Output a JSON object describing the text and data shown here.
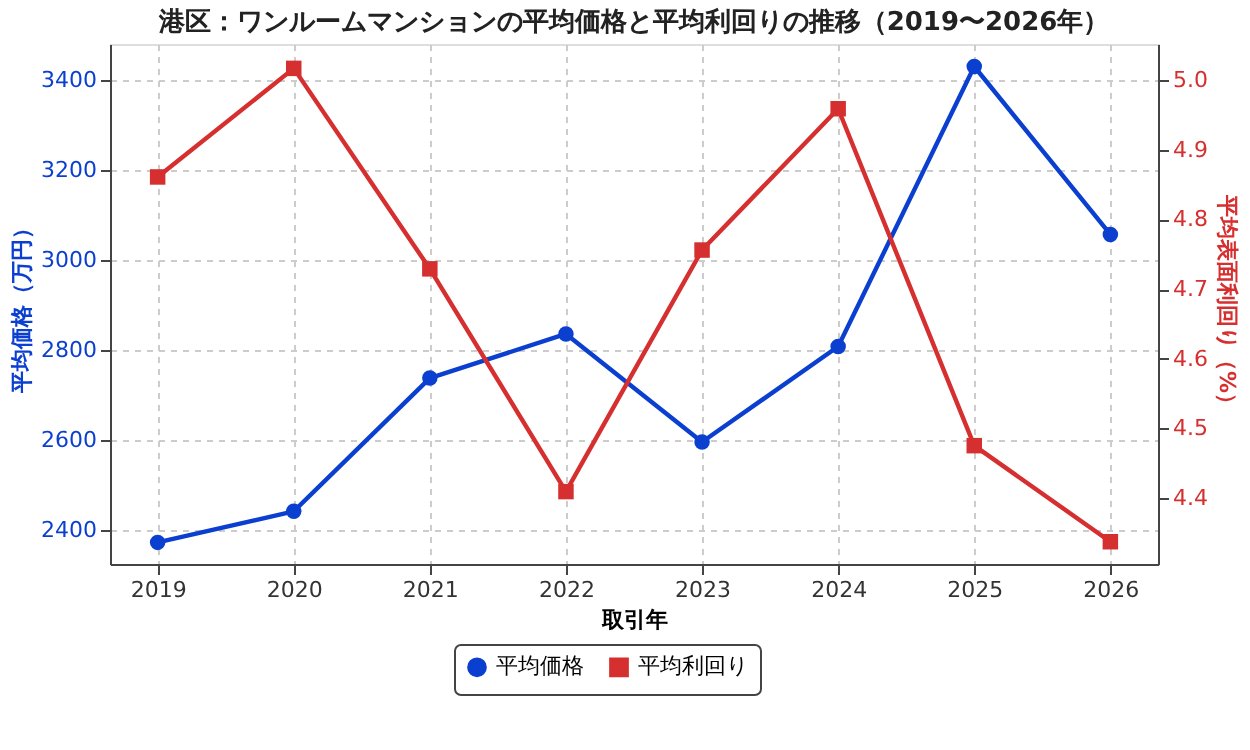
{
  "chart_data": {
    "type": "line",
    "title": "港区：ワンルームマンションの平均価格と平均利回りの推移（2019〜2026年）",
    "xlabel": "取引年",
    "ylabel": "平均価格（万円）",
    "y2label": "平均表面利回り（%）",
    "categories": [
      "2019",
      "2020",
      "2021",
      "2022",
      "2023",
      "2024",
      "2025",
      "2026"
    ],
    "series": [
      {
        "name": "平均価格",
        "color": "#0b3fd0",
        "marker": "circle",
        "values": [
          2373,
          2442,
          2738,
          2836,
          2596,
          2808,
          3430,
          3057
        ]
      },
      {
        "name": "平均利回り",
        "color": "#d62f2f",
        "marker": "square",
        "axis": "y2",
        "values": [
          4.861,
          5.017,
          4.729,
          4.409,
          4.756,
          4.959,
          4.475,
          4.337
        ]
      }
    ],
    "ylim": [
      2325,
      3480
    ],
    "yticks": [
      2400,
      2600,
      2800,
      3000,
      3200,
      3400
    ],
    "y2lim": [
      4.305,
      5.052
    ],
    "y2ticks": [
      4.4,
      4.5,
      4.6,
      4.7,
      4.8,
      4.9,
      {
        "value": 5,
        "label": "5.0"
      }
    ],
    "grid": true,
    "legend": "bottom",
    "line_style": "solid"
  }
}
